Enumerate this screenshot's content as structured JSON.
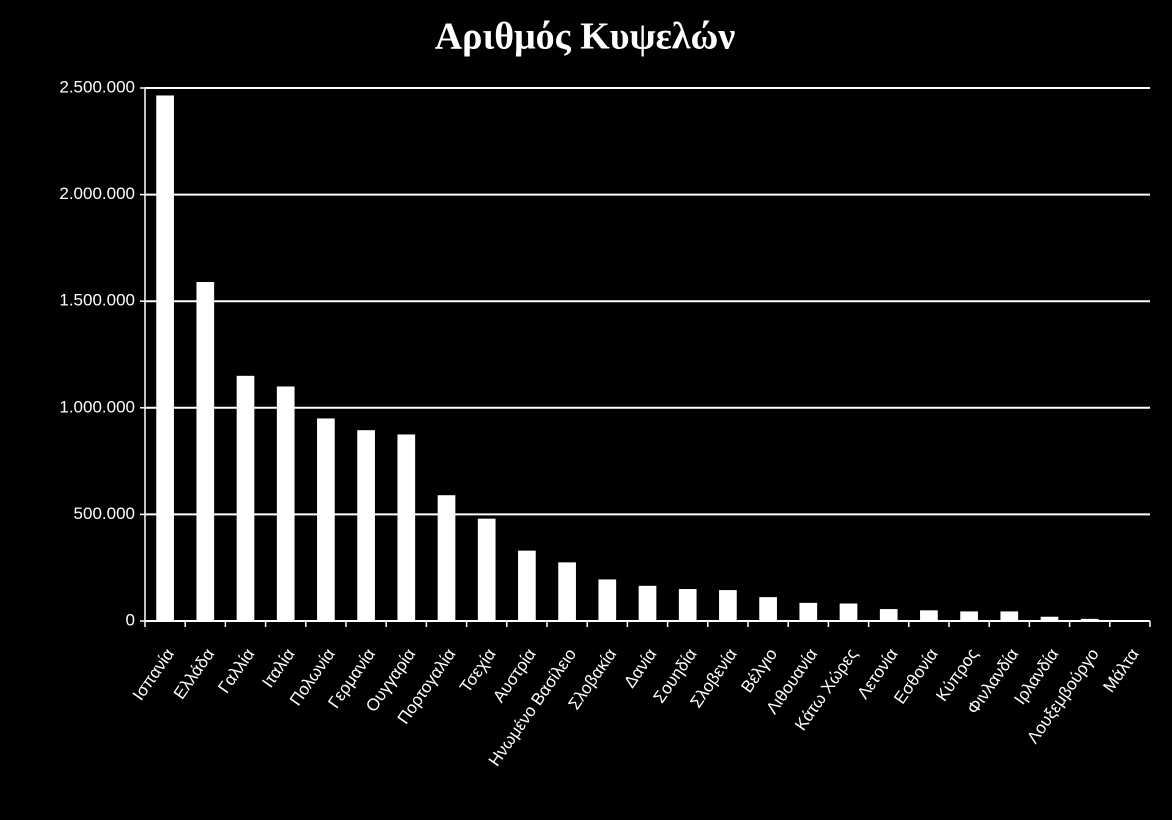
{
  "chart_data": {
    "type": "bar",
    "title": "Αριθμός Κυψελών",
    "categories": [
      "Ισπανία",
      "Ελλάδα",
      "Γαλλία",
      "Ιταλία",
      "Πολωνία",
      "Γερμανία",
      "Ουγγαρία",
      "Πορτογαλία",
      "Τσεχία",
      "Αυστρία",
      "Ηνωμένο Βασίλειο",
      "Σλοβακία",
      "Δανία",
      "Σουηδία",
      "Σλοβενία",
      "Βέλγιο",
      "Λιθουανία",
      "Κάτω Χώρες",
      "Λετονία",
      "Εσθονία",
      "Κύπρος",
      "Φινλανδία",
      "Ιρλανδία",
      "Λουξεμβούργο",
      "Μάλτα"
    ],
    "values": [
      2465000,
      1590000,
      1150000,
      1100000,
      950000,
      895000,
      875000,
      590000,
      480000,
      330000,
      275000,
      195000,
      165000,
      150000,
      145000,
      112000,
      85000,
      82000,
      56000,
      50000,
      45000,
      45000,
      20000,
      10000,
      2000
    ],
    "color": "#ffffff",
    "ylim": [
      0,
      2500000
    ],
    "yticks": [
      0,
      {
        "value": 500000,
        "label": "500.000"
      },
      {
        "value": 1000000,
        "label": "1.000.000"
      },
      {
        "value": 1500000,
        "label": "1.500.000"
      },
      {
        "value": 2000000,
        "label": "2.000.000"
      },
      {
        "value": 2500000,
        "label": "2.500.000"
      }
    ],
    "grid": true
  }
}
